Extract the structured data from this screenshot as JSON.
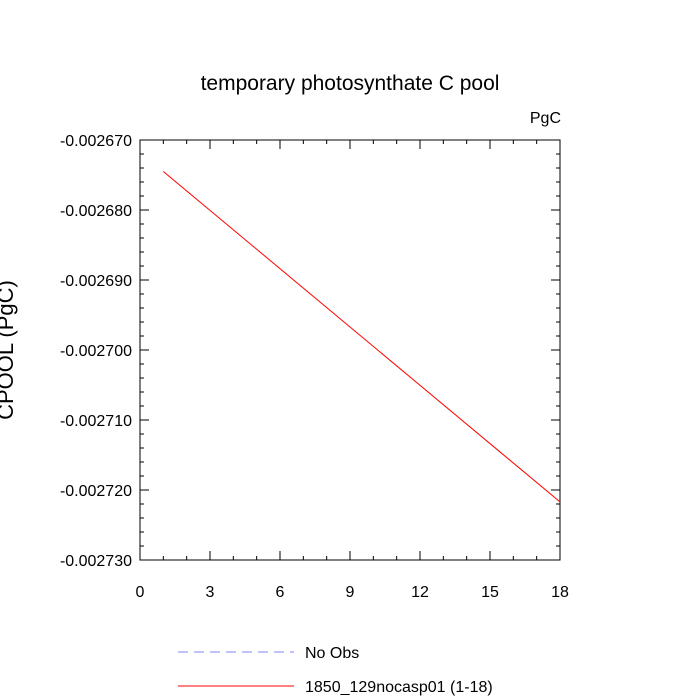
{
  "chart_data": {
    "type": "line",
    "title": "temporary photosynthate C pool",
    "units_label": "PgC",
    "ylabel": "CPOOL  (PgC)",
    "xlabel": "",
    "xlim": [
      0,
      18
    ],
    "ylim": [
      -0.00273,
      -0.00267
    ],
    "x_ticks": [
      "0",
      "3",
      "6",
      "9",
      "12",
      "15",
      "18"
    ],
    "y_ticks": [
      "-0.002670",
      "-0.002680",
      "-0.002690",
      "-0.002700",
      "-0.002710",
      "-0.002720",
      "-0.002730"
    ],
    "grid": false,
    "series": [
      {
        "name": "No Obs",
        "color": "#8080ff",
        "dash": "dashed",
        "x": [],
        "y": []
      },
      {
        "name": "1850_129nocasp01 (1-18)",
        "color": "#ff0000",
        "dash": "solid",
        "x": [
          1,
          18
        ],
        "y": [
          -0.0026745,
          -0.0027217
        ]
      }
    ],
    "legend_position": "bottom-left"
  }
}
